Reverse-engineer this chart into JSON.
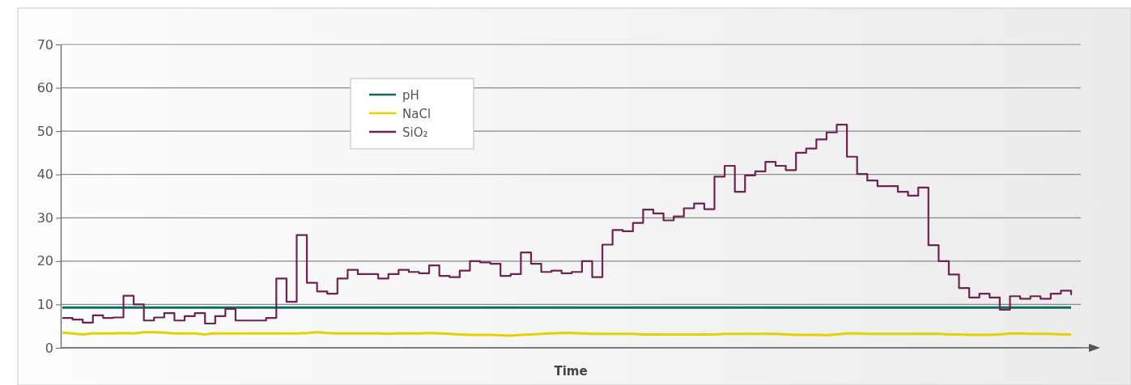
{
  "chart_data": {
    "type": "line",
    "xlabel": "Time",
    "categories": [
      null,
      null,
      null,
      null,
      null,
      null,
      null,
      null,
      null,
      null,
      null,
      null,
      null,
      null,
      null,
      null,
      null,
      null,
      null,
      null,
      null,
      null,
      null,
      null,
      null,
      null,
      null,
      null,
      null,
      null,
      null,
      null,
      null,
      null,
      null,
      null,
      null,
      null,
      null,
      null,
      null,
      null,
      null,
      null,
      null,
      null,
      null,
      null,
      null,
      null,
      null,
      null,
      null,
      null,
      null,
      null,
      null,
      null,
      null,
      null,
      null,
      null,
      null,
      null,
      null,
      null,
      null,
      null,
      null,
      null,
      null,
      null,
      null,
      null,
      null,
      null,
      null,
      null,
      null,
      null,
      null,
      null,
      null,
      null,
      null,
      null,
      null,
      null,
      null,
      null,
      null,
      null,
      null,
      null,
      null,
      null,
      null,
      null,
      null,
      null
    ],
    "ylim": [
      0,
      70
    ],
    "yticks": [
      0,
      10,
      20,
      30,
      40,
      50,
      60,
      70
    ],
    "grid": "y",
    "legend": "top left",
    "marker": "none",
    "series": [
      {
        "name": "pH",
        "color": "#0f6b64",
        "values": [
          9.3,
          9.3,
          9.3,
          9.3,
          9.3,
          9.3,
          9.3,
          9.3,
          9.3,
          9.3,
          9.3,
          9.3,
          9.3,
          9.3,
          9.3,
          9.3,
          9.3,
          9.3,
          9.3,
          9.3,
          9.3,
          9.3,
          9.3,
          9.3,
          9.3,
          9.3,
          9.3,
          9.3,
          9.3,
          9.3,
          9.3,
          9.3,
          9.3,
          9.3,
          9.3,
          9.3,
          9.3,
          9.3,
          9.3,
          9.3,
          9.3,
          9.3,
          9.3,
          9.3,
          9.3,
          9.3,
          9.3,
          9.3,
          9.3,
          9.3,
          9.3,
          9.3,
          9.3,
          9.3,
          9.3,
          9.3,
          9.3,
          9.3,
          9.3,
          9.3,
          9.3,
          9.3,
          9.3,
          9.3,
          9.3,
          9.3,
          9.3,
          9.3,
          9.3,
          9.3,
          9.3,
          9.3,
          9.3,
          9.3,
          9.3,
          9.3,
          9.3,
          9.3,
          9.3,
          9.3,
          9.3,
          9.3,
          9.3,
          9.3,
          9.3,
          9.3,
          9.3,
          9.3,
          9.3,
          9.3,
          9.3,
          9.3,
          9.3,
          9.3,
          9.3,
          9.3,
          9.3,
          9.3,
          9.3,
          9.3
        ]
      },
      {
        "name": "NaCl",
        "color": "#e6d000",
        "values": [
          3.5,
          3.3,
          3.1,
          3.3,
          3.3,
          3.3,
          3.4,
          3.3,
          3.6,
          3.6,
          3.5,
          3.3,
          3.3,
          3.3,
          3.1,
          3.3,
          3.3,
          3.3,
          3.3,
          3.3,
          3.3,
          3.3,
          3.3,
          3.3,
          3.4,
          3.6,
          3.4,
          3.3,
          3.3,
          3.3,
          3.3,
          3.3,
          3.2,
          3.3,
          3.3,
          3.3,
          3.4,
          3.3,
          3.2,
          3.1,
          3.0,
          3.0,
          3.0,
          2.9,
          2.8,
          3.0,
          3.1,
          3.2,
          3.3,
          3.4,
          3.4,
          3.3,
          3.2,
          3.2,
          3.2,
          3.2,
          3.2,
          3.1,
          3.1,
          3.1,
          3.1,
          3.1,
          3.1,
          3.1,
          3.1,
          3.2,
          3.2,
          3.2,
          3.2,
          3.2,
          3.2,
          3.1,
          3.0,
          3.0,
          3.0,
          2.9,
          3.1,
          3.3,
          3.3,
          3.2,
          3.2,
          3.2,
          3.2,
          3.2,
          3.2,
          3.2,
          3.2,
          3.1,
          3.1,
          3.0,
          3.0,
          3.0,
          3.1,
          3.3,
          3.3,
          3.2,
          3.2,
          3.2,
          3.1,
          3.1
        ]
      },
      {
        "name": "SiO₂",
        "color": "#6e2350",
        "type": "step",
        "values": [
          6.9,
          6.5,
          5.8,
          7.5,
          6.9,
          7.0,
          12,
          10,
          6.3,
          7.0,
          8.0,
          6.3,
          7.3,
          8.0,
          5.6,
          7.3,
          9.0,
          6.3,
          6.3,
          6.3,
          6.9,
          16,
          10.6,
          26,
          15,
          13,
          12.5,
          16,
          18,
          17,
          17,
          16,
          17,
          18,
          17.5,
          17.2,
          19,
          16.6,
          16.3,
          17.8,
          20,
          19.7,
          19.4,
          16.6,
          17,
          22,
          19.4,
          17.5,
          17.8,
          17.2,
          17.5,
          20,
          16.3,
          23.8,
          27.2,
          26.9,
          28.8,
          31.9,
          31,
          29.4,
          30.3,
          32.2,
          33.3,
          32,
          39.5,
          42,
          36,
          39.8,
          40.7,
          42.9,
          42,
          41,
          45,
          46,
          48.1,
          49.7,
          51.5,
          44.1,
          40.1,
          38.6,
          37.3,
          37.3,
          36,
          35.1,
          37,
          23.7,
          20,
          16.9,
          13.8,
          11.6,
          12.5,
          11.6,
          8.8,
          11.9,
          11.3,
          11.9,
          11.3,
          12.5,
          13.2,
          12.2
        ]
      }
    ]
  }
}
